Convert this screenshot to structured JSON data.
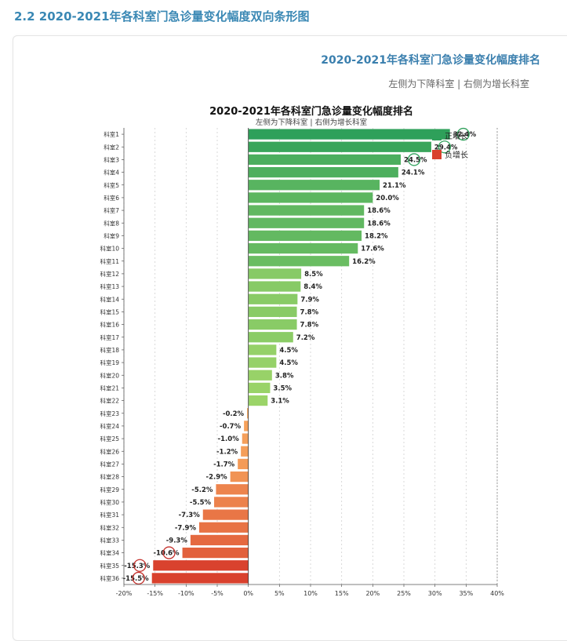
{
  "section": {
    "title": "2.2 2020-2021年各科室门急诊量变化幅度双向条形图"
  },
  "card": {
    "title": "2020-2021年各科室门急诊量变化幅度排名",
    "subtitle": "左侧为下降科室 | 右侧为增长科室"
  },
  "chart_data": {
    "type": "bar",
    "orientation": "horizontal",
    "title": "2020-2021年各科室门急诊量变化幅度排名",
    "subtitle": "左侧为下降科室 | 右侧为增长科室",
    "categories": [
      "科室1",
      "科室2",
      "科室3",
      "科室4",
      "科室5",
      "科室6",
      "科室7",
      "科室8",
      "科室9",
      "科室10",
      "科室11",
      "科室12",
      "科室13",
      "科室14",
      "科室15",
      "科室16",
      "科室17",
      "科室18",
      "科室19",
      "科室20",
      "科室21",
      "科室22",
      "科室23",
      "科室24",
      "科室25",
      "科室26",
      "科室27",
      "科室28",
      "科室29",
      "科室30",
      "科室31",
      "科室32",
      "科室33",
      "科室34",
      "科室35",
      "科室36"
    ],
    "values": [
      32.4,
      29.4,
      24.5,
      24.1,
      21.1,
      20.0,
      18.6,
      18.6,
      18.2,
      17.6,
      16.2,
      8.5,
      8.4,
      7.9,
      7.8,
      7.8,
      7.2,
      4.5,
      4.5,
      3.8,
      3.5,
      3.1,
      -0.2,
      -0.7,
      -1.0,
      -1.2,
      -1.7,
      -2.9,
      -5.2,
      -5.5,
      -7.3,
      -7.9,
      -9.3,
      -10.6,
      -15.3,
      -15.5
    ],
    "labels": [
      "32.4%",
      "29.4%",
      "24.5%",
      "24.1%",
      "21.1%",
      "20.0%",
      "18.6%",
      "18.6%",
      "18.2%",
      "17.6%",
      "16.2%",
      "8.5%",
      "8.4%",
      "7.9%",
      "7.8%",
      "7.8%",
      "7.2%",
      "4.5%",
      "4.5%",
      "3.8%",
      "3.5%",
      "3.1%",
      "-0.2%",
      "-0.7%",
      "-1.0%",
      "-1.2%",
      "-1.7%",
      "-2.9%",
      "-5.2%",
      "-5.5%",
      "-7.3%",
      "-7.9%",
      "-9.3%",
      "-10.6%",
      "-15.3%",
      "-15.5%"
    ],
    "xlim": [
      -20,
      40
    ],
    "xticks": [
      "-20%",
      "-15%",
      "-10%",
      "-5%",
      "0%",
      "5%",
      "10%",
      "15%",
      "20%",
      "25%",
      "30%",
      "35%",
      "40%"
    ],
    "xtick_values": [
      -20,
      -15,
      -10,
      -5,
      0,
      5,
      10,
      15,
      20,
      25,
      30,
      35,
      40
    ],
    "legend": [
      {
        "name": "正增长",
        "color": "#2ea05a"
      },
      {
        "name": "负增长",
        "color": "#d9412d"
      }
    ],
    "legend_position": "top-right",
    "highlighted": [
      "科室1",
      "科室2",
      "科室3",
      "科室34",
      "科室35",
      "科室36"
    ],
    "highlight_colors": {
      "positive": "#2ea05a",
      "negative": "#c4302b"
    },
    "positive_gradient": [
      "#2ea05a",
      "#a6d96a"
    ],
    "negative_gradient": [
      "#f7a65d",
      "#d9412d"
    ],
    "grid": true
  }
}
